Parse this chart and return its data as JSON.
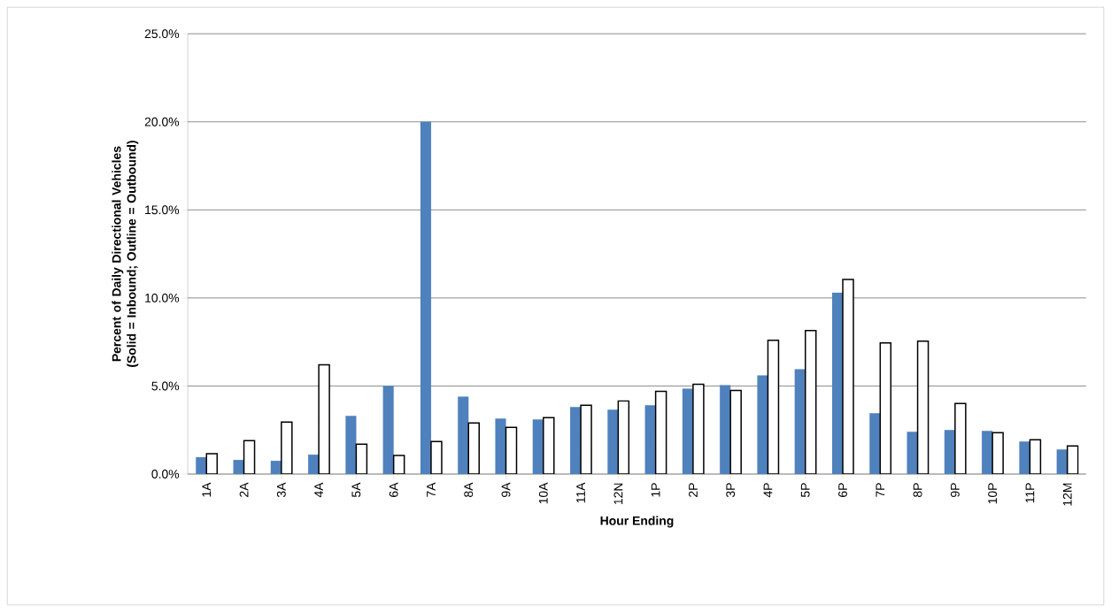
{
  "chart_data": {
    "type": "bar",
    "xlabel": "Hour Ending",
    "ylabel": "Percent of Daily Directional Vehicles (Solid = Inbound; Outline = Outbound)",
    "categories": [
      "1A",
      "2A",
      "3A",
      "4A",
      "5A",
      "6A",
      "7A",
      "8A",
      "9A",
      "10A",
      "11A",
      "12N",
      "1P",
      "2P",
      "3P",
      "4P",
      "5P",
      "6P",
      "7P",
      "8P",
      "9P",
      "10P",
      "11P",
      "12M"
    ],
    "series": [
      {
        "color": "#4f81bd",
        "values": [
          0.95,
          0.8,
          0.75,
          1.1,
          3.3,
          5.0,
          20.0,
          4.4,
          3.15,
          3.1,
          3.8,
          3.65,
          3.9,
          4.85,
          5.05,
          5.6,
          5.95,
          10.3,
          3.45,
          2.4,
          2.5,
          2.45,
          1.85,
          1.4
        ]
      },
      {
        "color": "#ffffff",
        "values": [
          1.15,
          1.9,
          2.95,
          6.2,
          1.7,
          1.05,
          1.85,
          2.9,
          2.65,
          3.2,
          3.9,
          4.15,
          4.7,
          5.1,
          4.75,
          7.6,
          8.15,
          11.05,
          7.45,
          7.55,
          4.0,
          2.35,
          1.95,
          1.6
        ]
      }
    ],
    "ylim": [
      0,
      25
    ],
    "yticks": [
      {
        "value": 0,
        "label": "0.0%"
      },
      {
        "value": 5,
        "label": "5.0%"
      },
      {
        "value": 10,
        "label": "10.0%"
      },
      {
        "value": 15,
        "label": "15.0%"
      },
      {
        "value": 20,
        "label": "20.0%"
      },
      {
        "value": 25,
        "label": "25.0%"
      }
    ],
    "grid": "y"
  }
}
